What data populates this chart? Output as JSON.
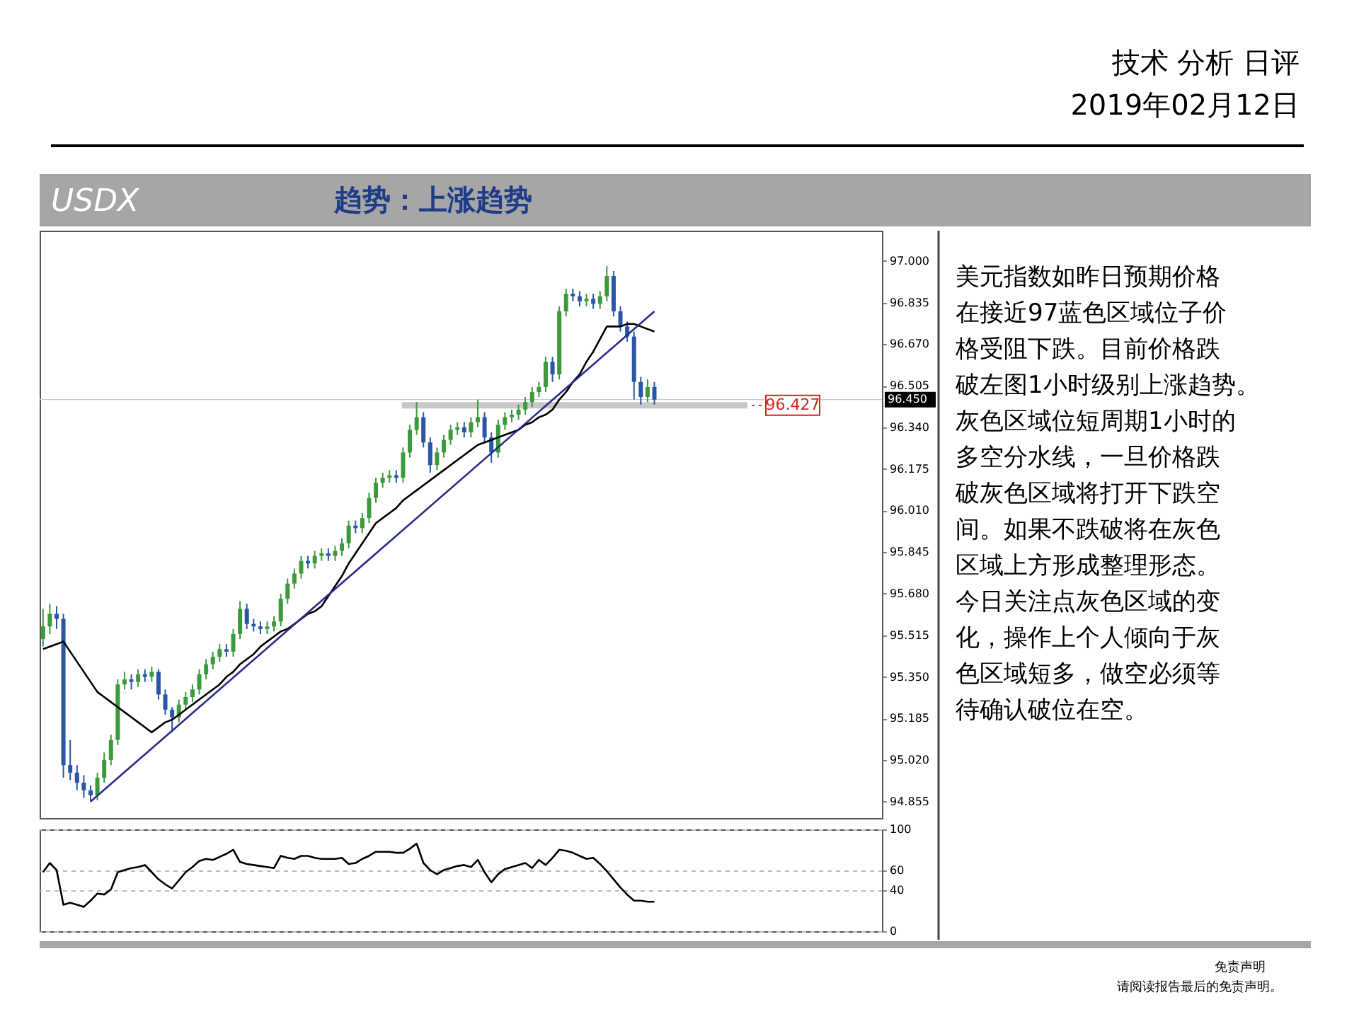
{
  "chart_data": [
    {
      "type": "candlestick",
      "title": "USDX",
      "subtitle": "趋势：上涨趋势",
      "annotations": [
        "技术 分析 日评",
        "2019年02月12日",
        "免责声明",
        "请阅读报告最后的免责声明。"
      ],
      "categories": [
        null,
        null,
        null,
        null,
        null,
        null,
        null,
        null,
        null,
        null,
        null,
        null,
        null,
        null,
        null,
        null,
        null,
        null,
        null,
        null,
        null,
        null,
        null,
        null,
        null,
        null,
        null,
        null,
        null,
        null,
        null,
        null,
        null,
        null,
        null,
        null,
        null,
        null,
        null,
        null,
        null,
        null,
        null,
        null,
        null,
        null,
        null,
        null,
        null,
        null,
        null,
        null,
        null,
        null,
        null,
        null,
        null,
        null,
        null,
        null,
        null,
        null,
        null,
        null,
        null,
        null,
        null,
        null,
        null,
        null,
        null,
        null,
        null,
        null,
        null,
        null,
        null,
        null,
        null,
        null,
        null,
        null,
        null,
        null,
        null,
        null,
        null,
        null,
        null,
        null,
        null,
        null,
        null,
        null,
        null,
        null,
        null,
        null,
        null,
        null,
        null,
        null,
        null,
        null,
        null,
        null,
        null,
        null,
        null,
        null,
        null,
        null,
        null,
        null,
        null,
        null,
        null,
        null,
        null,
        null,
        null,
        null,
        null,
        null
      ],
      "ohlc": [
        [
          95.5,
          95.62,
          95.47,
          95.55
        ],
        [
          95.55,
          95.64,
          95.52,
          95.6
        ],
        [
          95.6,
          95.63,
          95.54,
          95.58
        ],
        [
          95.58,
          95.6,
          94.95,
          95.0
        ],
        [
          95.0,
          95.1,
          94.94,
          94.97
        ],
        [
          94.97,
          95.0,
          94.9,
          94.93
        ],
        [
          94.93,
          94.96,
          94.87,
          94.9
        ],
        [
          94.9,
          94.92,
          94.855,
          94.88
        ],
        [
          94.88,
          94.97,
          94.86,
          94.95
        ],
        [
          94.95,
          95.05,
          94.93,
          95.02
        ],
        [
          95.02,
          95.12,
          95.0,
          95.1
        ],
        [
          95.1,
          95.34,
          95.08,
          95.32
        ],
        [
          95.32,
          95.37,
          95.3,
          95.34
        ],
        [
          95.34,
          95.36,
          95.3,
          95.33
        ],
        [
          95.33,
          95.38,
          95.31,
          95.36
        ],
        [
          95.36,
          95.38,
          95.33,
          95.35
        ],
        [
          95.35,
          95.39,
          95.33,
          95.37
        ],
        [
          95.37,
          95.38,
          95.26,
          95.28
        ],
        [
          95.28,
          95.3,
          95.2,
          95.22
        ],
        [
          95.22,
          95.23,
          95.13,
          95.19
        ],
        [
          95.19,
          95.26,
          95.17,
          95.24
        ],
        [
          95.24,
          95.29,
          95.22,
          95.27
        ],
        [
          95.27,
          95.32,
          95.25,
          95.3
        ],
        [
          95.3,
          95.38,
          95.28,
          95.36
        ],
        [
          95.36,
          95.42,
          95.34,
          95.4
        ],
        [
          95.4,
          95.45,
          95.38,
          95.43
        ],
        [
          95.43,
          95.48,
          95.41,
          95.46
        ],
        [
          95.46,
          95.48,
          95.43,
          95.45
        ],
        [
          95.45,
          95.54,
          95.43,
          95.52
        ],
        [
          95.52,
          95.65,
          95.5,
          95.62
        ],
        [
          95.62,
          95.64,
          95.54,
          95.56
        ],
        [
          95.56,
          95.58,
          95.53,
          95.55
        ],
        [
          95.55,
          95.57,
          95.52,
          95.54
        ],
        [
          95.54,
          95.57,
          95.52,
          95.55
        ],
        [
          95.55,
          95.59,
          95.53,
          95.57
        ],
        [
          95.57,
          95.68,
          95.55,
          95.66
        ],
        [
          95.66,
          95.74,
          95.64,
          95.72
        ],
        [
          95.72,
          95.78,
          95.7,
          95.76
        ],
        [
          95.76,
          95.83,
          95.74,
          95.81
        ],
        [
          95.81,
          95.83,
          95.78,
          95.8
        ],
        [
          95.8,
          95.85,
          95.78,
          95.83
        ],
        [
          95.83,
          95.86,
          95.81,
          95.84
        ],
        [
          95.84,
          95.86,
          95.81,
          95.83
        ],
        [
          95.83,
          95.87,
          95.81,
          95.85
        ],
        [
          95.85,
          95.9,
          95.83,
          95.88
        ],
        [
          95.88,
          95.97,
          95.86,
          95.95
        ],
        [
          95.95,
          95.97,
          95.92,
          95.94
        ],
        [
          95.94,
          96.0,
          95.92,
          95.98
        ],
        [
          95.98,
          96.08,
          95.96,
          96.06
        ],
        [
          96.06,
          96.14,
          96.04,
          96.12
        ],
        [
          96.12,
          96.16,
          96.1,
          96.14
        ],
        [
          96.14,
          96.17,
          96.12,
          96.15
        ],
        [
          96.15,
          96.17,
          96.12,
          96.14
        ],
        [
          96.14,
          96.26,
          96.12,
          96.24
        ],
        [
          96.24,
          96.35,
          96.22,
          96.33
        ],
        [
          96.33,
          96.44,
          96.31,
          96.38
        ],
        [
          96.38,
          96.4,
          96.26,
          96.28
        ],
        [
          96.28,
          96.3,
          96.16,
          96.19
        ],
        [
          96.19,
          96.26,
          96.17,
          96.24
        ],
        [
          96.24,
          96.31,
          96.22,
          96.29
        ],
        [
          96.29,
          96.35,
          96.27,
          96.33
        ],
        [
          96.33,
          96.36,
          96.31,
          96.34
        ],
        [
          96.34,
          96.36,
          96.3,
          96.32
        ],
        [
          96.32,
          96.38,
          96.3,
          96.36
        ],
        [
          96.36,
          96.45,
          96.34,
          96.38
        ],
        [
          96.38,
          96.4,
          96.28,
          96.3
        ],
        [
          96.3,
          96.32,
          96.2,
          96.24
        ],
        [
          96.24,
          96.37,
          96.22,
          96.35
        ],
        [
          96.35,
          96.4,
          96.33,
          96.38
        ],
        [
          96.38,
          96.41,
          96.36,
          96.39
        ],
        [
          96.39,
          96.43,
          96.37,
          96.41
        ],
        [
          96.41,
          96.46,
          96.39,
          96.44
        ],
        [
          96.44,
          96.5,
          96.42,
          96.48
        ],
        [
          96.48,
          96.52,
          96.46,
          96.5
        ],
        [
          96.5,
          96.62,
          96.48,
          96.6
        ],
        [
          96.6,
          96.62,
          96.52,
          96.55
        ],
        [
          96.55,
          96.82,
          96.53,
          96.8
        ],
        [
          96.8,
          96.89,
          96.78,
          96.87
        ],
        [
          96.87,
          96.89,
          96.84,
          96.86
        ],
        [
          96.86,
          96.88,
          96.82,
          96.84
        ],
        [
          96.84,
          96.87,
          96.82,
          96.85
        ],
        [
          96.85,
          96.87,
          96.81,
          96.83
        ],
        [
          96.83,
          96.88,
          96.81,
          96.86
        ],
        [
          96.86,
          96.98,
          96.84,
          96.94
        ],
        [
          96.94,
          96.96,
          96.78,
          96.8
        ],
        [
          96.8,
          96.82,
          96.72,
          96.74
        ],
        [
          96.74,
          96.76,
          96.68,
          96.7
        ],
        [
          96.7,
          96.72,
          96.45,
          96.52
        ],
        [
          96.52,
          96.54,
          96.43,
          96.46
        ],
        [
          96.46,
          96.53,
          96.44,
          96.5
        ],
        [
          96.5,
          96.52,
          96.43,
          96.45
        ],
        null,
        null,
        null,
        null,
        null,
        null,
        null,
        null,
        null,
        null,
        null,
        null,
        null,
        null,
        null,
        null,
        null,
        null,
        null,
        null,
        null,
        null,
        null,
        null,
        null,
        null,
        null,
        null,
        null,
        null,
        null,
        null,
        null
      ],
      "colors": [
        "#3c9a3c",
        "#3c9a3c",
        "#2a56a6",
        "#2a56a6",
        "#2a56a6",
        "#2a56a6",
        "#2a56a6",
        "#2a56a6",
        "#3c9a3c",
        "#3c9a3c",
        "#3c9a3c",
        "#3c9a3c",
        "#3c9a3c",
        "#2a56a6",
        "#3c9a3c",
        "#2a56a6",
        "#3c9a3c",
        "#2a56a6",
        "#2a56a6",
        "#2a56a6",
        "#3c9a3c",
        "#3c9a3c",
        "#3c9a3c",
        "#3c9a3c",
        "#3c9a3c",
        "#3c9a3c",
        "#3c9a3c",
        "#2a56a6",
        "#3c9a3c",
        "#3c9a3c",
        "#2a56a6",
        "#2a56a6",
        "#2a56a6",
        "#3c9a3c",
        "#3c9a3c",
        "#3c9a3c",
        "#3c9a3c",
        "#3c9a3c",
        "#3c9a3c",
        "#2a56a6",
        "#3c9a3c",
        "#3c9a3c",
        "#2a56a6",
        "#3c9a3c",
        "#3c9a3c",
        "#3c9a3c",
        "#2a56a6",
        "#3c9a3c",
        "#3c9a3c",
        "#3c9a3c",
        "#3c9a3c",
        "#3c9a3c",
        "#2a56a6",
        "#3c9a3c",
        "#3c9a3c",
        "#3c9a3c",
        "#2a56a6",
        "#2a56a6",
        "#3c9a3c",
        "#3c9a3c",
        "#3c9a3c",
        "#3c9a3c",
        "#2a56a6",
        "#3c9a3c",
        "#3c9a3c",
        "#2a56a6",
        "#2a56a6",
        "#3c9a3c",
        "#3c9a3c",
        "#3c9a3c",
        "#3c9a3c",
        "#3c9a3c",
        "#3c9a3c",
        "#3c9a3c",
        "#3c9a3c",
        "#2a56a6",
        "#3c9a3c",
        "#3c9a3c",
        "#2a56a6",
        "#2a56a6",
        "#3c9a3c",
        "#2a56a6",
        "#3c9a3c",
        "#3c9a3c",
        "#2a56a6",
        "#2a56a6",
        "#2a56a6",
        "#2a56a6",
        "#2a56a6",
        "#3c9a3c",
        "#2a56a6",
        null,
        null,
        null,
        null,
        null,
        null,
        null,
        null,
        null,
        null,
        null,
        null,
        null,
        null,
        null,
        null,
        null,
        null,
        null,
        null,
        null,
        null,
        null,
        null,
        null,
        null,
        null,
        null,
        null,
        null,
        null,
        null,
        null
      ],
      "series": [
        {
          "type": "line",
          "color": "#000000",
          "values": [
            95.46,
            95.47,
            95.48,
            95.49,
            95.45,
            95.41,
            95.37,
            95.33,
            95.29,
            95.27,
            95.25,
            95.23,
            95.21,
            95.19,
            95.17,
            95.15,
            95.13,
            95.15,
            95.17,
            95.18,
            95.2,
            95.22,
            95.24,
            95.26,
            95.28,
            95.3,
            95.32,
            95.35,
            95.37,
            95.4,
            95.42,
            95.44,
            95.47,
            95.49,
            95.51,
            95.53,
            95.54,
            95.56,
            95.58,
            95.6,
            95.61,
            95.63,
            95.67,
            95.71,
            95.75,
            95.8,
            95.84,
            95.88,
            95.92,
            95.96,
            95.98,
            96.0,
            96.02,
            96.05,
            96.07,
            96.09,
            96.11,
            96.13,
            96.15,
            96.17,
            96.19,
            96.21,
            96.23,
            96.25,
            96.27,
            96.28,
            96.29,
            96.3,
            96.31,
            96.32,
            96.33,
            96.35,
            96.36,
            96.38,
            96.39,
            96.41,
            96.45,
            96.48,
            96.52,
            96.55,
            96.6,
            96.64,
            96.69,
            96.74,
            96.74,
            96.74,
            96.75,
            96.75,
            96.74,
            96.73,
            96.72,
            null,
            null,
            null,
            null,
            null,
            null,
            null,
            null,
            null,
            null,
            null,
            null,
            null,
            null,
            null,
            null,
            null,
            null,
            null,
            null,
            null,
            null,
            null,
            null,
            null,
            null,
            null,
            null,
            null,
            null,
            null,
            null,
            null
          ]
        },
        {
          "type": "line",
          "color": "#2b2b8c",
          "values": [
            null,
            null,
            null,
            null,
            null,
            null,
            null,
            94.855,
            null,
            null,
            null,
            null,
            null,
            null,
            null,
            null,
            null,
            null,
            null,
            null,
            null,
            null,
            null,
            null,
            null,
            null,
            null,
            null,
            null,
            null,
            null,
            null,
            null,
            null,
            null,
            null,
            null,
            null,
            null,
            null,
            null,
            null,
            null,
            null,
            null,
            null,
            null,
            null,
            null,
            null,
            null,
            null,
            null,
            null,
            null,
            null,
            null,
            null,
            null,
            null,
            null,
            null,
            null,
            null,
            null,
            null,
            null,
            null,
            null,
            null,
            null,
            null,
            null,
            null,
            null,
            null,
            null,
            null,
            null,
            null,
            null,
            null,
            null,
            null,
            null,
            null,
            null,
            null,
            null,
            null,
            96.8,
            null,
            null,
            null,
            null,
            null,
            null,
            null,
            null,
            null,
            null,
            null,
            null,
            null,
            null,
            null,
            null,
            null,
            null,
            null,
            null,
            null,
            null,
            null,
            null,
            null,
            null,
            null,
            null,
            null,
            null,
            null,
            null,
            null
          ]
        }
      ],
      "bands": [
        {
          "axis": "y",
          "from": 96.415,
          "to": 96.44,
          "color": "#c8c8c8"
        }
      ],
      "ref_lines": [
        {
          "axis": "y",
          "value": 96.427,
          "label": "96.427",
          "color": "#e02020",
          "line_style": "dashed"
        },
        {
          "axis": "y",
          "value": 96.45,
          "label": "96.450",
          "color": "#cccccc",
          "line_style": "solid"
        }
      ],
      "ylim": [
        94.79,
        97.12
      ],
      "yticks": [
        {
          "value": 97.0,
          "label": "97.000"
        },
        {
          "value": 96.835,
          "label": "96.835"
        },
        {
          "value": 96.67,
          "label": "96.670"
        },
        {
          "value": 96.505,
          "label": "96.505"
        },
        {
          "value": 96.34,
          "label": "96.340"
        },
        {
          "value": 96.175,
          "label": "96.175"
        },
        {
          "value": 96.01,
          "label": "96.010"
        },
        {
          "value": 95.845,
          "label": "95.845"
        },
        {
          "value": 95.68,
          "label": "95.680"
        },
        {
          "value": 95.515,
          "label": "95.515"
        },
        {
          "value": 95.35,
          "label": "95.350"
        },
        {
          "value": 95.185,
          "label": "95.185"
        },
        {
          "value": 95.02,
          "label": "95.020"
        },
        {
          "value": 94.855,
          "label": "94.855"
        }
      ],
      "tick_labels": "y"
    },
    {
      "type": "line",
      "categories": [
        null,
        null,
        null,
        null,
        null,
        null,
        null,
        null,
        null,
        null,
        null,
        null,
        null,
        null,
        null,
        null,
        null,
        null,
        null,
        null,
        null,
        null,
        null,
        null,
        null,
        null,
        null,
        null,
        null,
        null,
        null,
        null,
        null,
        null,
        null,
        null,
        null,
        null,
        null,
        null,
        null,
        null,
        null,
        null,
        null,
        null,
        null,
        null,
        null,
        null,
        null,
        null,
        null,
        null,
        null,
        null,
        null,
        null,
        null,
        null,
        null,
        null,
        null,
        null,
        null,
        null,
        null,
        null,
        null,
        null,
        null,
        null,
        null,
        null,
        null,
        null,
        null,
        null,
        null,
        null,
        null,
        null,
        null,
        null,
        null,
        null,
        null,
        null,
        null,
        null,
        null,
        null,
        null,
        null,
        null,
        null,
        null,
        null,
        null,
        null,
        null,
        null,
        null,
        null,
        null,
        null,
        null,
        null,
        null,
        null,
        null,
        null,
        null,
        null,
        null,
        null,
        null,
        null,
        null,
        null,
        null,
        null,
        null,
        null
      ],
      "values": [
        58,
        67,
        60,
        26,
        28,
        26,
        24,
        30,
        37,
        36,
        41,
        58,
        60,
        62,
        63,
        65,
        58,
        51,
        46,
        42,
        50,
        58,
        63,
        69,
        71,
        70,
        73,
        76,
        80,
        68,
        66,
        65,
        64,
        63,
        62,
        74,
        72,
        71,
        74,
        74,
        72,
        71,
        71,
        71,
        72,
        66,
        67,
        71,
        74,
        78,
        78,
        78,
        77,
        77,
        81,
        86,
        67,
        60,
        56,
        60,
        62,
        64,
        65,
        63,
        70,
        58,
        48,
        56,
        61,
        63,
        65,
        67,
        62,
        70,
        65,
        72,
        80,
        79,
        77,
        74,
        71,
        72,
        66,
        59,
        51,
        43,
        36,
        30,
        30,
        29,
        29,
        null,
        null,
        null,
        null,
        null,
        null,
        null,
        null,
        null,
        null,
        null,
        null,
        null,
        null,
        null,
        null,
        null,
        null,
        null,
        null,
        null,
        null,
        null,
        null,
        null,
        null,
        null,
        null,
        null,
        null,
        null,
        null,
        null
      ],
      "color": "#000000",
      "ylim": [
        0,
        100
      ],
      "yticks": [
        0,
        40,
        60,
        100
      ],
      "grid": "y",
      "tick_labels": "y"
    },
    {
      "type": "other",
      "annotations": [
        "美元指数如昨日预期价格",
        "在接近97蓝色区域位子价",
        "格受阻下跌。目前价格跌",
        "破左图1小时级别上涨趋势。",
        "灰色区域位短周期1小时的",
        "多空分水线，一旦价格跌",
        "破灰色区域将打开下跌空",
        "间。如果不跌破将在灰色",
        "区域上方形成整理形态。",
        "今日关注点灰色区域的变",
        "化，操作上个人倾向于灰",
        "色区域短多，做空必须等",
        "待确认破位在空。"
      ]
    }
  ]
}
